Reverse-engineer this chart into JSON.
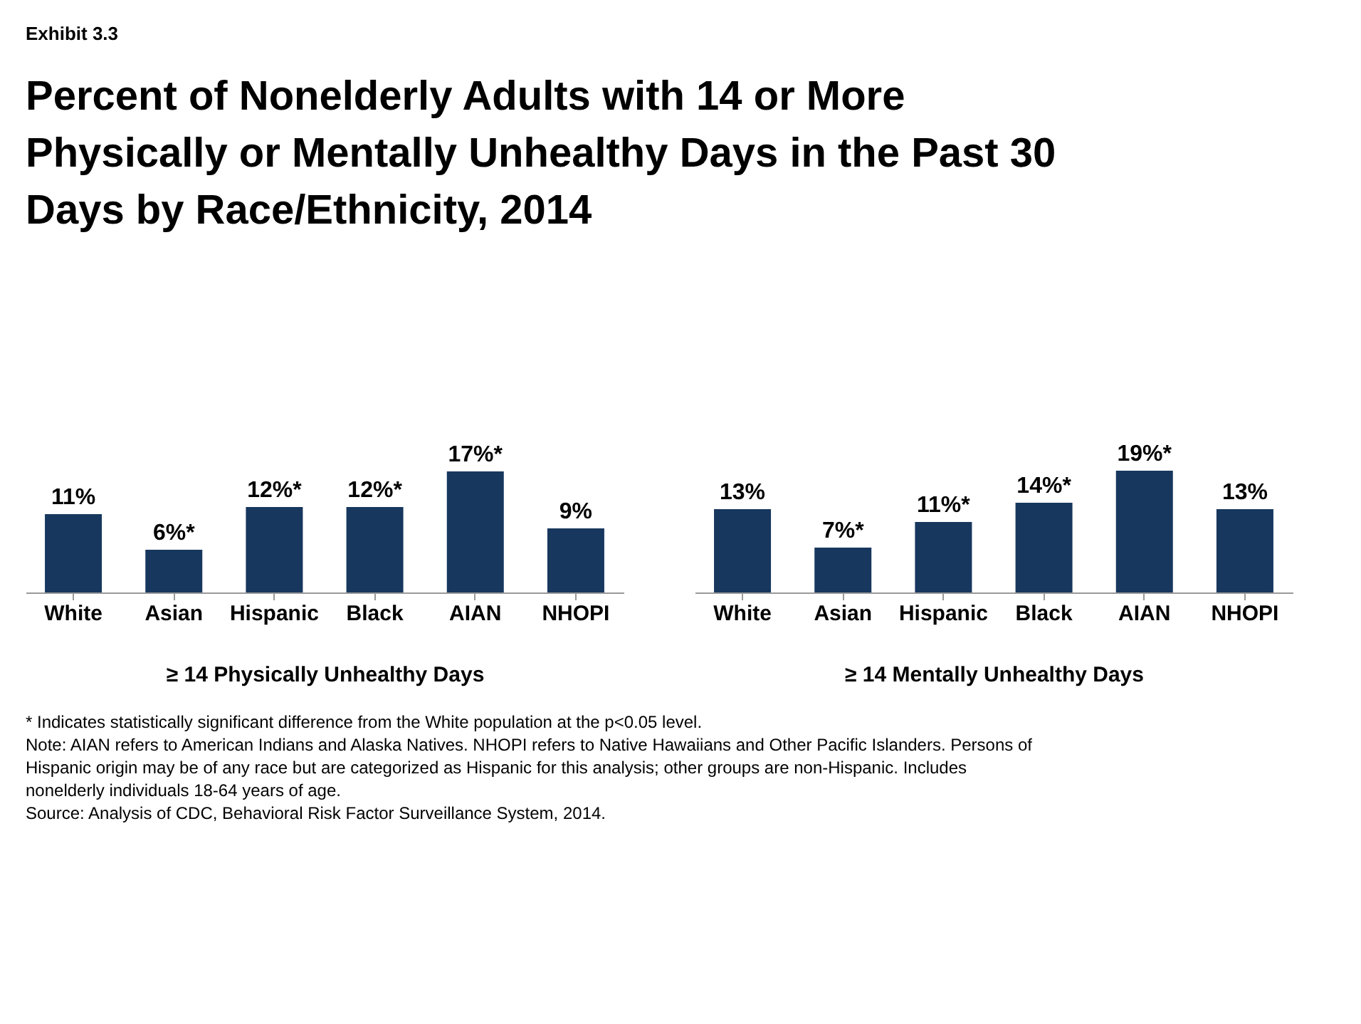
{
  "chart_data": [
    {
      "type": "bar",
      "subtitle": "Exhibit 3.3",
      "title": "Percent of Nonelderly Adults with 14 or More Physically or Mentally Unhealthy Days in the Past 30 Days by Race/Ethnicity, 2014",
      "categories": [
        "White",
        "Asian",
        "Hispanic",
        "Black",
        "AIAN",
        "NHOPI"
      ],
      "values": [
        11,
        6,
        12,
        12,
        17,
        9
      ],
      "value_labels": [
        "11%",
        "6%*",
        "12%*",
        "12%*",
        "17%*",
        "9%"
      ],
      "color": "#17375e",
      "xlabel": "≥ 14 Physically Unhealthy Days",
      "tick_labels": "x",
      "grid": false,
      "annotations": [
        "* Indicates statistically significant difference from the White population at the p<0.05 level.",
        "Note: AIAN refers to American Indians and Alaska Natives. NHOPI refers to Native Hawaiians and Other Pacific Islanders. Persons of Hispanic origin may be of any race but are categorized as Hispanic for this analysis; other groups are non-Hispanic. Includes nonelderly individuals 18-64 years of age.",
        "Source: Analysis of CDC, Behavioral Risk Factor Surveillance System, 2014."
      ]
    },
    {
      "type": "bar",
      "categories": [
        "White",
        "Asian",
        "Hispanic",
        "Black",
        "AIAN",
        "NHOPI"
      ],
      "values": [
        13,
        7,
        11,
        14,
        19,
        13
      ],
      "value_labels": [
        "13%",
        "7%*",
        "11%*",
        "14%*",
        "19%*",
        "13%"
      ],
      "color": "#17375e",
      "xlabel": "≥ 14 Mentally Unhealthy Days",
      "tick_labels": "x",
      "grid": false
    }
  ]
}
